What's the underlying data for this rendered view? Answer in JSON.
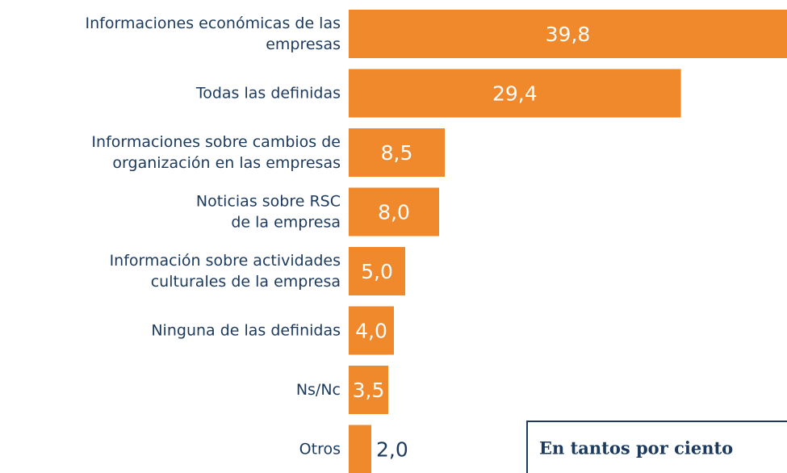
{
  "chart_data": {
    "type": "bar",
    "orientation": "horizontal",
    "categories": [
      [
        "Informaciones económicas de las",
        "empresas"
      ],
      [
        "Todas las definidas"
      ],
      [
        "Informaciones sobre cambios de",
        "organización en las empresas"
      ],
      [
        "Noticias sobre RSC",
        "de la empresa"
      ],
      [
        "Información sobre actividades",
        "culturales de la empresa"
      ],
      [
        "Ninguna de las definidas"
      ],
      [
        "Ns/Nc"
      ],
      [
        "Otros"
      ]
    ],
    "values": [
      39.8,
      29.4,
      8.5,
      8.0,
      5.0,
      4.0,
      3.5,
      2.0
    ],
    "value_labels": [
      "39,8",
      "29,4",
      "8,5",
      "8,0",
      "5,0",
      "4,0",
      "3,5",
      "2,0"
    ],
    "color": "#f0892b",
    "annotation": "En tantos por ciento"
  }
}
